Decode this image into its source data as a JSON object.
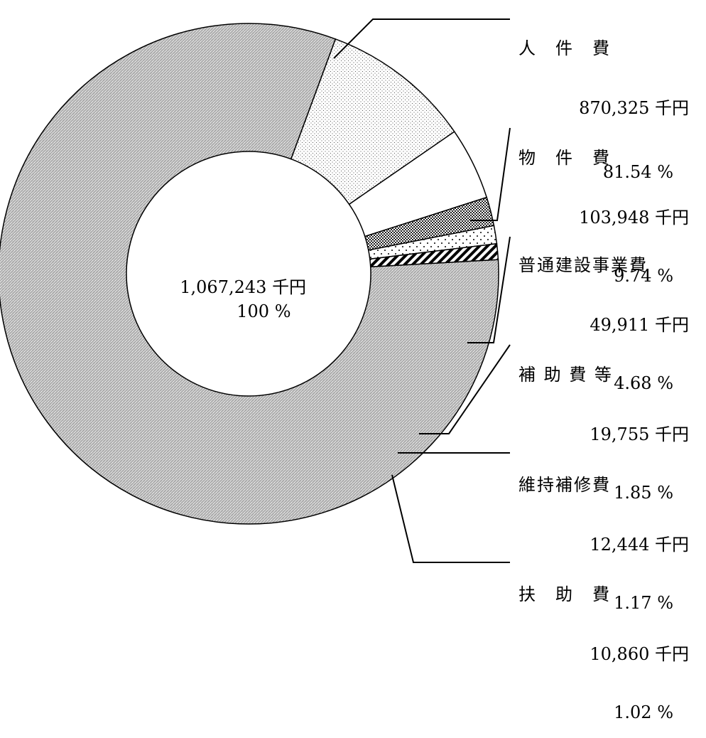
{
  "chart_data": {
    "type": "pie",
    "total": {
      "amount": "1,067,243",
      "unit": "千円",
      "percent": "100 %"
    },
    "slices": [
      {
        "label": "人　件　費",
        "value": 870325,
        "amount": "870,325",
        "unit": "千円",
        "percent": "81.54 %",
        "pattern": "fine-gray"
      },
      {
        "label": "物　件　費",
        "value": 103948,
        "amount": "103,948",
        "unit": "千円",
        "percent": "9.74 %",
        "pattern": "light-dots"
      },
      {
        "label": "普通建設事業費",
        "value": 49911,
        "amount": "49,911",
        "unit": "千円",
        "percent": "4.68 %",
        "pattern": "white"
      },
      {
        "label": "補 助 費 等",
        "value": 19755,
        "amount": "19,755",
        "unit": "千円",
        "percent": "1.85 %",
        "pattern": "dark-checker"
      },
      {
        "label": "維持補修費",
        "value": 12444,
        "amount": "12,444",
        "unit": "千円",
        "percent": "1.17 %",
        "pattern": "sparse-dots"
      },
      {
        "label": "扶　助　費",
        "value": 10860,
        "amount": "10,860",
        "unit": "千円",
        "percent": "1.02 %",
        "pattern": "diagonal-stripes"
      }
    ]
  }
}
